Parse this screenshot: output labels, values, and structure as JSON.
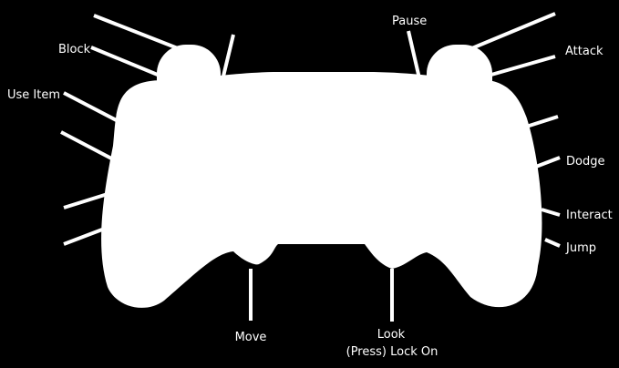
{
  "colors": {
    "background": "#000000",
    "controller": "#ffffff",
    "lines": "#ffffff",
    "text": "#ffffff"
  },
  "controller": {
    "icon": "gamepad-silhouette"
  },
  "labels": {
    "block": "Block",
    "use_item": "Use Item",
    "pause": "Pause",
    "attack": "Attack",
    "dodge": "Dodge",
    "interact": "Interact",
    "jump": "Jump",
    "move": "Move",
    "look": "Look",
    "lock_on": "(Press) Lock On"
  }
}
